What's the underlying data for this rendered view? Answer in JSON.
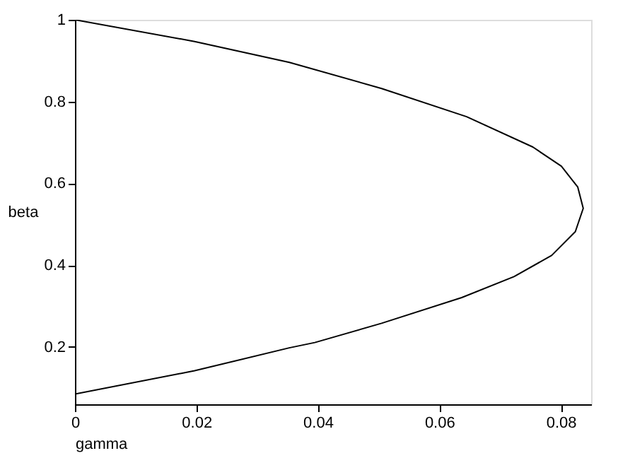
{
  "chart_data": {
    "type": "line",
    "xlabel": "gamma",
    "ylabel": "beta",
    "x": [
      0,
      0.0197,
      0.0353,
      0.0505,
      0.0645,
      0.0754,
      0.0801,
      0.0828,
      0.0837,
      0.0824,
      0.0785,
      0.0723,
      0.0637,
      0.0505,
      0.0395,
      0.0353,
      0.0197,
      0
    ],
    "series": [
      {
        "color": "#000000",
        "values": [
          1,
          0.947,
          0.896,
          0.832,
          0.763,
          0.689,
          0.642,
          0.591,
          0.539,
          0.482,
          0.424,
          0.372,
          0.321,
          0.258,
          0.211,
          0.198,
          0.142,
          0.085
        ]
      }
    ],
    "xlim": [
      0,
      0.085
    ],
    "xticks": [
      0,
      0.02,
      0.04,
      0.06,
      0.08
    ],
    "ylim": [
      0.06,
      1
    ],
    "yticks": [
      0.2,
      0.4,
      0.6,
      0.8,
      1
    ],
    "grid": false,
    "legend": false,
    "marker": "none",
    "line_style": "solid"
  }
}
